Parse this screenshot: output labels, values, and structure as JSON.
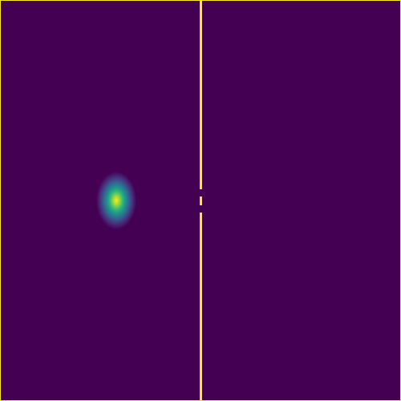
{
  "colors": {
    "background": "#440154",
    "line": "#fde725",
    "peak": "#fde725"
  },
  "elements": {
    "divider": "vertical-line-with-gap",
    "spot": "gaussian-spot"
  }
}
